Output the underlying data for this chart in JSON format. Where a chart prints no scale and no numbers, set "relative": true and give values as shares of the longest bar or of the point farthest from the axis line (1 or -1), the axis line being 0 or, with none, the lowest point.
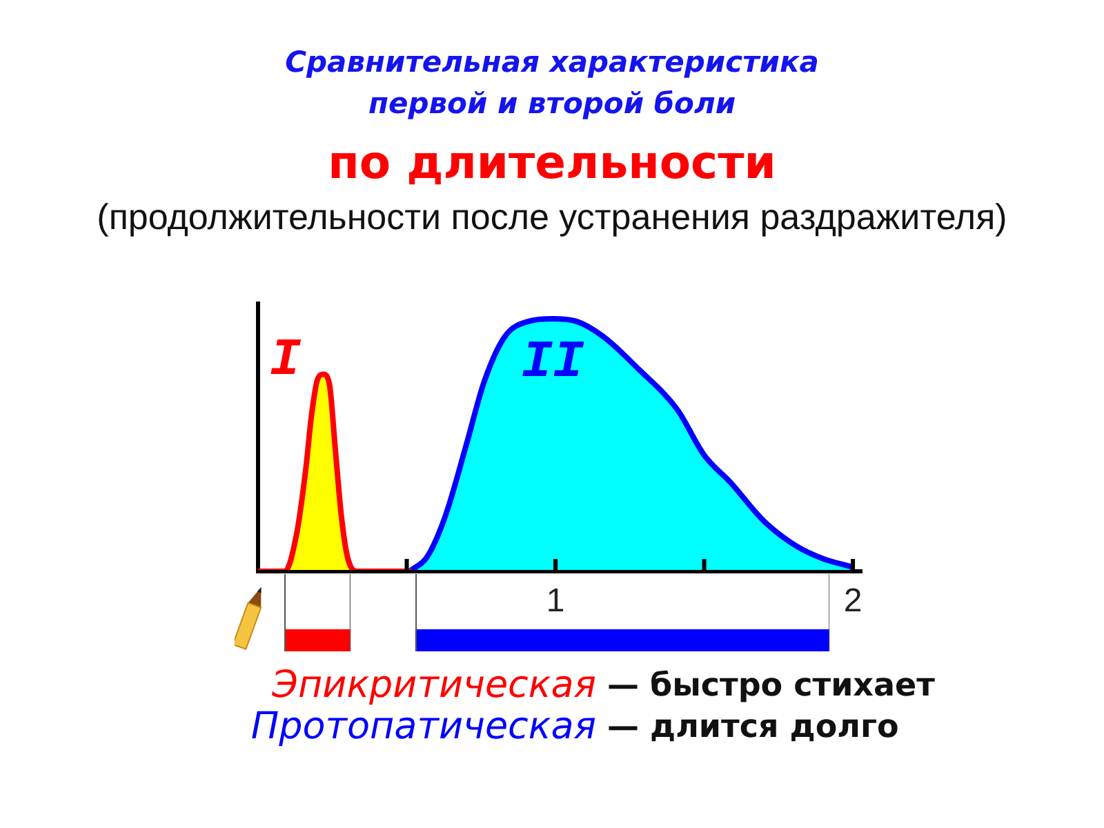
{
  "chart_data": [
    {
      "type": "area",
      "title": "Сравнительная характеристика\nпервой и второй боли",
      "subtitle": "по длительности",
      "annotations": [
        "(продолжительности после устранения раздражителя)"
      ],
      "relative": true,
      "xlim": [
        0,
        2.03
      ],
      "xticks": [
        {
          "value": 0.5,
          "label": null
        },
        1,
        {
          "value": 1.5,
          "label": null
        },
        2
      ],
      "series": [
        {
          "name": "I",
          "color": "#ffff00",
          "x": [
            0,
            0.09,
            0.13,
            0.16,
            0.18,
            0.2,
            0.22,
            0.24,
            0.26,
            0.28,
            0.3,
            0.33,
            0.51
          ],
          "values": [
            0,
            0,
            0.15,
            0.4,
            0.62,
            0.76,
            0.78,
            0.74,
            0.48,
            0.22,
            0.06,
            0,
            0
          ]
        },
        {
          "name": "II",
          "color": "#00ffff",
          "x": [
            0.51,
            0.57,
            0.63,
            0.7,
            0.76,
            0.83,
            0.91,
            0.99,
            1.07,
            1.16,
            1.28,
            1.41,
            1.5,
            1.59,
            1.7,
            1.81,
            1.9,
            1.99
          ],
          "values": [
            0,
            0.06,
            0.22,
            0.5,
            0.75,
            0.93,
            0.99,
            1,
            0.99,
            0.93,
            0.8,
            0.64,
            0.46,
            0.35,
            0.2,
            0.1,
            0.05,
            0.02
          ]
        }
      ]
    },
    {
      "type": "bar",
      "orientation": "horizontal",
      "categories": [
        null
      ],
      "xlim": [
        0,
        2.03
      ],
      "tick_labels": false,
      "legend": "bottom",
      "annotations": [
        "— быстро стихает",
        "— длится долго"
      ],
      "series": [
        {
          "name": "Эпикритическая",
          "color": "#ff0000",
          "base": [
            0.09
          ],
          "values": [
            0.22
          ]
        },
        {
          "name": "Протопатическая",
          "color": "#0000ff",
          "base": [
            0.53
          ],
          "values": [
            1.39
          ]
        }
      ]
    }
  ]
}
